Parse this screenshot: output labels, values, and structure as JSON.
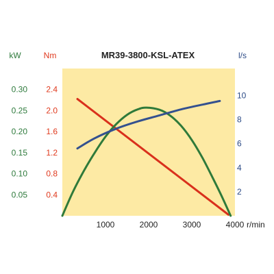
{
  "chart_data": {
    "type": "line",
    "title": "MR39-3800-KSL-ATEX",
    "background_color": "#fdeaa4",
    "grid": false,
    "x": {
      "label": "r/min",
      "range": [
        0,
        4000
      ],
      "ticks": [
        1000,
        2000,
        3000,
        4000
      ],
      "tick_labels": [
        "1000",
        "2000",
        "3000",
        "4000"
      ],
      "color": "#222222"
    },
    "axes": {
      "power": {
        "label": "kW",
        "range": [
          0,
          0.35
        ],
        "ticks": [
          0.05,
          0.1,
          0.15,
          0.2,
          0.25,
          0.3
        ],
        "tick_labels": [
          "0.05",
          "0.10",
          "0.15",
          "0.20",
          "0.25",
          "0.30"
        ],
        "color": "#2e7a3c"
      },
      "torque": {
        "label": "Nm",
        "range": [
          0,
          2.8
        ],
        "ticks": [
          0.4,
          0.8,
          1.2,
          1.6,
          2.0,
          2.4
        ],
        "tick_labels": [
          "0.4",
          "0.8",
          "1.2",
          "1.6",
          "2.0",
          "2.4"
        ],
        "color": "#e03a1e"
      },
      "flow": {
        "label": "l/s",
        "range": [
          0,
          12.25
        ],
        "ticks": [
          2,
          4,
          6,
          8,
          10
        ],
        "tick_labels": [
          "2",
          "4",
          "6",
          "8",
          "10"
        ],
        "color": "#2b4a86"
      }
    },
    "series": [
      {
        "axis": "torque",
        "color": "#d9301c",
        "points": [
          [
            350,
            2.22
          ],
          [
            3850,
            0.02
          ]
        ]
      },
      {
        "axis": "power",
        "color": "#2f7a3a",
        "points": [
          [
            0,
            0.0
          ],
          [
            250,
            0.058
          ],
          [
            500,
            0.107
          ],
          [
            750,
            0.15
          ],
          [
            1000,
            0.188
          ],
          [
            1250,
            0.218
          ],
          [
            1500,
            0.24
          ],
          [
            1750,
            0.253
          ],
          [
            1950,
            0.257
          ],
          [
            2250,
            0.252
          ],
          [
            2500,
            0.238
          ],
          [
            2750,
            0.214
          ],
          [
            3000,
            0.18
          ],
          [
            3250,
            0.137
          ],
          [
            3500,
            0.087
          ],
          [
            3700,
            0.045
          ],
          [
            3900,
            0.0
          ]
        ]
      },
      {
        "axis": "flow",
        "color": "#34518f",
        "points": [
          [
            350,
            5.6
          ],
          [
            750,
            6.45
          ],
          [
            1250,
            7.25
          ],
          [
            1750,
            7.85
          ],
          [
            2250,
            8.35
          ],
          [
            2750,
            8.85
          ],
          [
            3250,
            9.25
          ],
          [
            3650,
            9.55
          ]
        ]
      }
    ]
  }
}
